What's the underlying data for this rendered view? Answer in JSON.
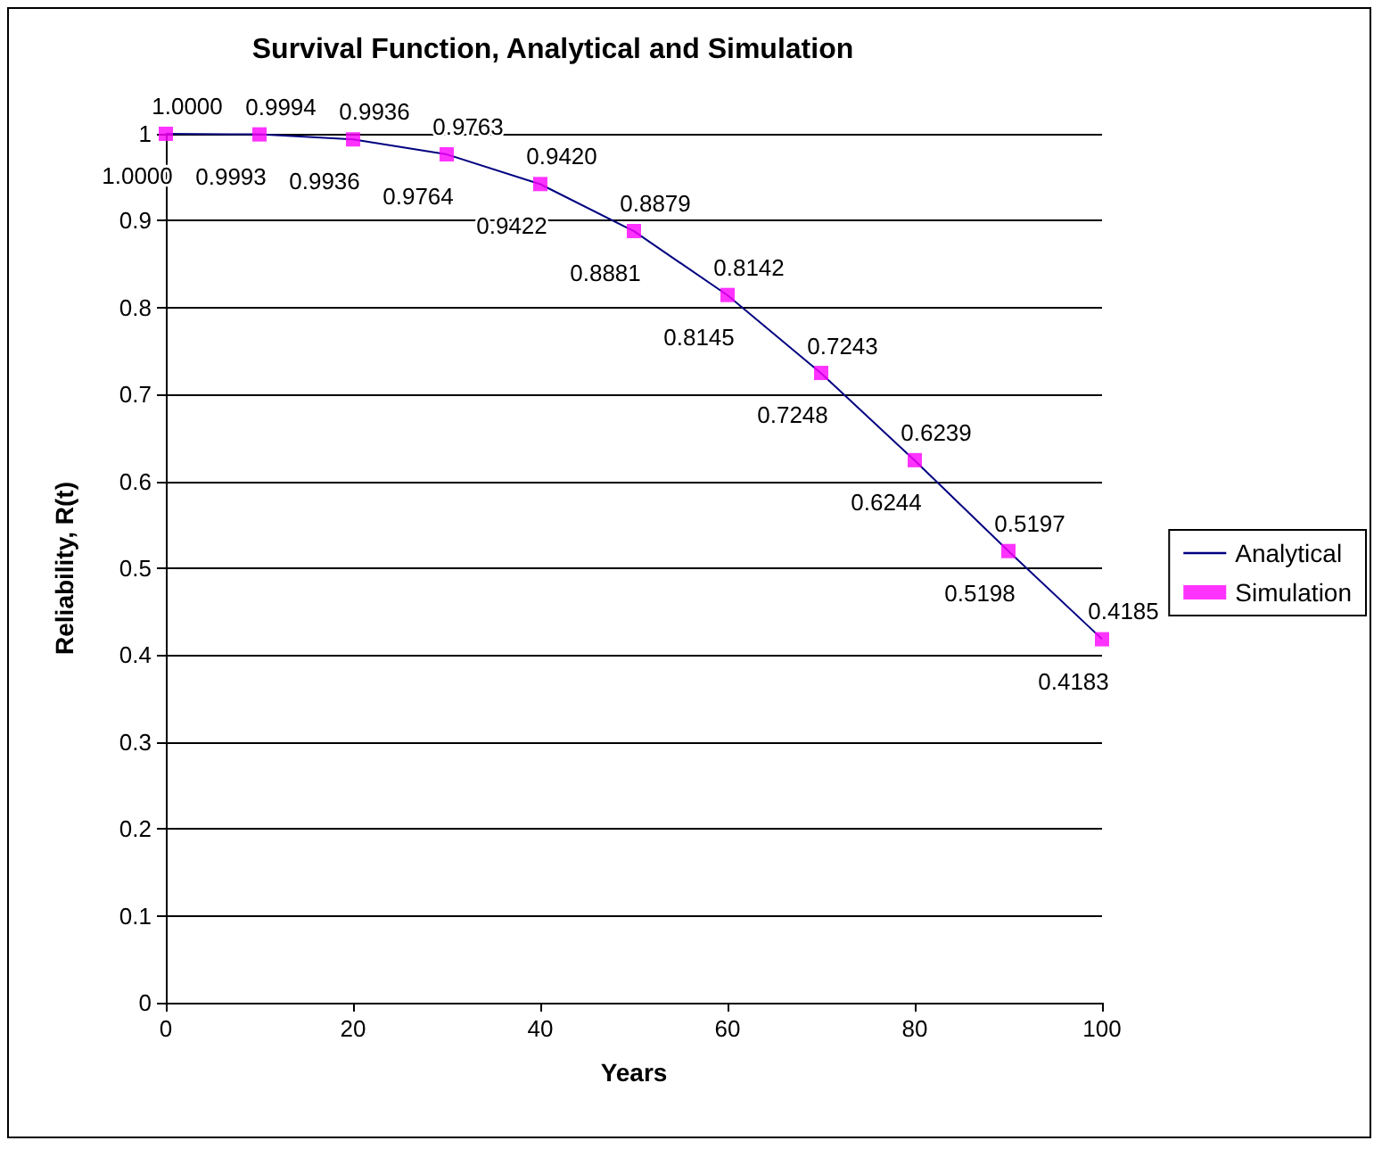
{
  "chart_data": {
    "type": "line",
    "title": "Survival Function, Analytical and Simulation",
    "xlabel": "Years",
    "ylabel": "Reliability, R(t)",
    "x": [
      0,
      10,
      20,
      30,
      40,
      50,
      60,
      70,
      80,
      90,
      100
    ],
    "series": [
      {
        "name": "Analytical",
        "marker": "none",
        "color": "#000080",
        "values": [
          1.0,
          0.9994,
          0.9936,
          0.9763,
          0.942,
          0.8879,
          0.8142,
          0.7243,
          0.6239,
          0.5197,
          0.4185
        ],
        "value_labels": [
          "1.0000",
          "0.9994",
          "0.9936",
          "0.9763",
          "0.9420",
          "0.8879",
          "0.8142",
          "0.7243",
          "0.6239",
          "0.5197",
          "0.4185"
        ]
      },
      {
        "name": "Simulation",
        "type": "scatter",
        "marker": "square",
        "color": "#ff00ff",
        "values": [
          1.0,
          0.9993,
          0.9936,
          0.9764,
          0.9422,
          0.8881,
          0.8145,
          0.7248,
          0.6244,
          0.5198,
          0.4183
        ],
        "value_labels": [
          "1.0000",
          "0.9993",
          "0.9936",
          "0.9764",
          "0.9422",
          "0.8881",
          "0.8145",
          "0.7248",
          "0.6244",
          "0.5198",
          "0.4183"
        ]
      }
    ],
    "xlim": [
      0,
      100
    ],
    "xticks": [
      0,
      20,
      40,
      60,
      80,
      100
    ],
    "ylim": [
      0,
      1
    ],
    "yticks": [
      0,
      0.1,
      0.2,
      0.3,
      0.4,
      0.5,
      0.6,
      0.7,
      0.8,
      0.9,
      1
    ],
    "grid": "y",
    "legend": "right"
  }
}
